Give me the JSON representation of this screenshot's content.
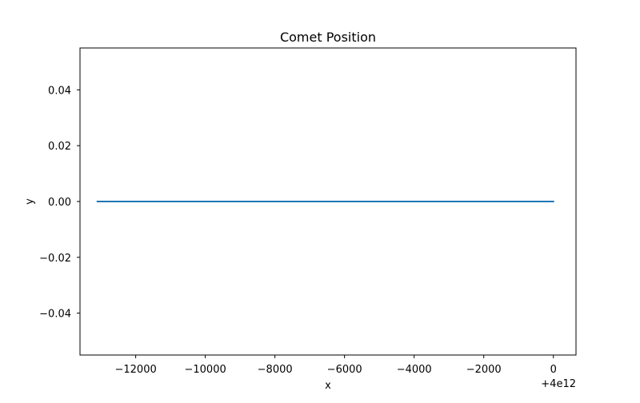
{
  "chart_data": {
    "type": "line",
    "title": "Comet Position",
    "xlabel": "x",
    "ylabel": "y",
    "x_offset_label": "+4e12",
    "xlim": [
      3999999986400,
      4000000000650
    ],
    "ylim": [
      -0.055,
      0.055
    ],
    "x_ticks": [
      3999999988000,
      3999999990000,
      3999999992000,
      3999999994000,
      3999999996000,
      3999999998000,
      4000000000000
    ],
    "x_tick_labels": [
      "−12000",
      "−10000",
      "−8000",
      "−6000",
      "−4000",
      "−2000",
      "0"
    ],
    "y_ticks": [
      -0.04,
      -0.02,
      0.0,
      0.02,
      0.04
    ],
    "y_tick_labels": [
      "−0.04",
      "−0.02",
      "0.00",
      "0.02",
      "0.04"
    ],
    "grid": false,
    "series": [
      {
        "color": "#1f77b4",
        "x": [
          3999999986900,
          4000000000000
        ],
        "y": [
          0.0,
          0.0
        ]
      }
    ]
  }
}
